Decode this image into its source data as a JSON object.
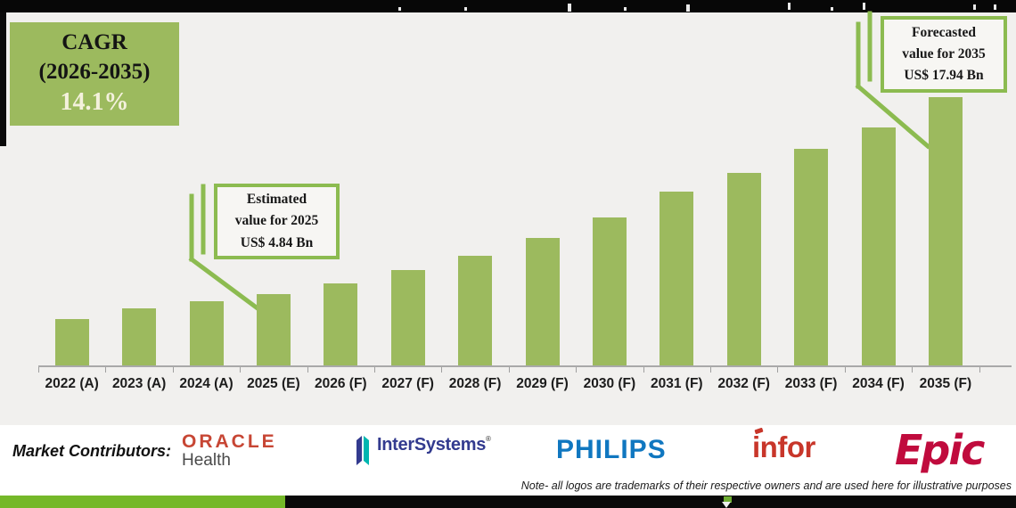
{
  "colors": {
    "bar_green": "#9cba5e",
    "accent_green": "#8cbb50",
    "stripe_green": "#75b829",
    "oracle_red": "#c74634",
    "intersystems_navy": "#333b8f",
    "intersystems_teal": "#00b6b0",
    "philips_blue": "#1077c0",
    "infor_red": "#c8362a",
    "epic_red": "#c00b3d"
  },
  "cagr_box": {
    "title": "CAGR",
    "range": "(2026-2035)",
    "value": "14.1%"
  },
  "callout_estimated": {
    "line1": "Estimated",
    "line2": "value for 2025",
    "line3": "US$ 4.84 Bn"
  },
  "callout_forecasted": {
    "line1": "Forecasted",
    "line2": "value for 2035",
    "line3": "US$ 17.94 Bn"
  },
  "chart_data": {
    "type": "bar",
    "categories": [
      "2022 (A)",
      "2023 (A)",
      "2024 (A)",
      "2025 (E)",
      "2026 (F)",
      "2027 (F)",
      "2028 (F)",
      "2029 (F)",
      "2030 (F)",
      "2031 (F)",
      "2032 (F)",
      "2033 (F)",
      "2034 (F)",
      "2035 (F)"
    ],
    "values": [
      3.15,
      3.86,
      4.34,
      4.84,
      5.52,
      6.42,
      7.37,
      8.55,
      9.92,
      11.64,
      12.89,
      14.5,
      15.92,
      17.94
    ],
    "unit": "US$ Bn",
    "bar_color": "#9cba5e",
    "ylim": [
      0,
      18.5
    ],
    "grid": false,
    "cagr_2026_2035": "14.1%",
    "annotations": [
      "Estimated value for 2025 US$ 4.84 Bn",
      "Forecasted value for 2035 US$ 17.94 Bn"
    ]
  },
  "footer": {
    "label": "Market Contributors:",
    "logos": {
      "oracle": {
        "line1": "ORACLE",
        "line2": "Health"
      },
      "intersystems": {
        "text": "InterSystems",
        "reg": "®"
      },
      "philips": {
        "text": "PHILIPS"
      },
      "infor": {
        "text": "infor"
      },
      "epic": {
        "text": "Epic"
      }
    },
    "note": "Note- all logos are trademarks of their respective owners and are used here for illustrative purposes"
  }
}
